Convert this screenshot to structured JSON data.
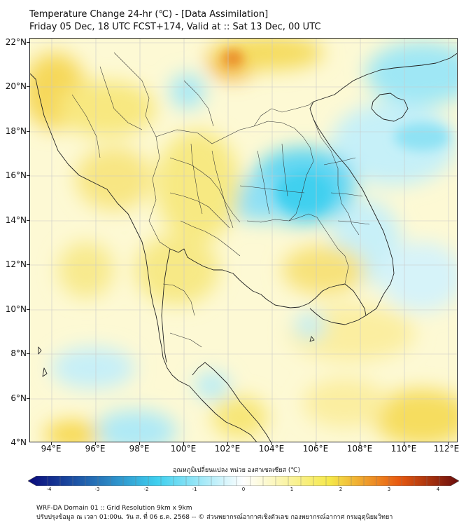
{
  "title": {
    "line1": "Temperature Change 24-hr (℃) - [Data Assimilation]",
    "line2": "Friday 05 Dec, 18 UTC FCST+174, Valid at :: Sat 13 Dec, 00 UTC"
  },
  "axes": {
    "lat_labels": [
      "22°N",
      "20°N",
      "18°N",
      "16°N",
      "14°N",
      "12°N",
      "10°N",
      "8°N",
      "6°N",
      "4°N"
    ],
    "lon_labels": [
      "94°E",
      "96°E",
      "98°E",
      "100°E",
      "102°E",
      "104°E",
      "106°E",
      "108°E",
      "110°E",
      "112°E"
    ]
  },
  "colorbar": {
    "title": "อุณหภูมิเปลี่ยนแปลง หน่วย องศาเซลเซียส (℃)",
    "ticks": [
      "-4",
      "-3",
      "-2",
      "-1",
      "0",
      "1",
      "2",
      "3",
      "4"
    ],
    "colors": {
      "min": "#0a0a7a",
      "cold": "#3fd0ef",
      "neutral": "#ffffff",
      "warm": "#f5e84a",
      "hot": "#e85a10",
      "max": "#6a0d0d"
    }
  },
  "footer": {
    "line1": "WRF-DA Domain 01 :: Grid Resolution 9km x 9km",
    "line2": "ปรับปรุงข้อมูล ณ เวลา 01:00น. วัน ส. ที่ 06 ธ.ค. 2568 -- © ส่วนพยากรณ์อากาศเชิงตัวเลข กองพยากรณ์อากาศ กรมอุตุนิยมวิทยา"
  }
}
